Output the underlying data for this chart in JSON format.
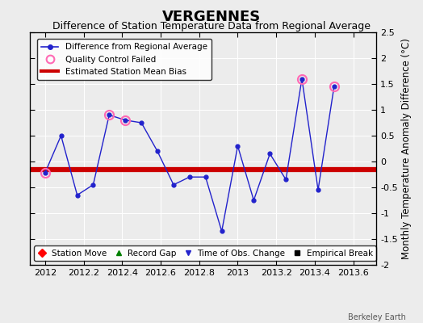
{
  "title": "VERGENNES",
  "subtitle": "Difference of Station Temperature Data from Regional Average",
  "ylabel": "Monthly Temperature Anomaly Difference (°C)",
  "background_color": "#ececec",
  "plot_bg_color": "#ececec",
  "xlim": [
    2011.92,
    2013.72
  ],
  "ylim": [
    -2.0,
    2.5
  ],
  "yticks": [
    -2,
    -1.5,
    -1,
    -0.5,
    0,
    0.5,
    1,
    1.5,
    2,
    2.5
  ],
  "xticks": [
    2012,
    2012.2,
    2012.4,
    2012.6,
    2012.8,
    2013,
    2013.2,
    2013.4,
    2013.6
  ],
  "xtick_labels": [
    "2012",
    "2012.2",
    "2012.4",
    "2012.6",
    "2012.8",
    "2013",
    "2013.2",
    "2013.4",
    "2013.6"
  ],
  "bias_line_y": -0.15,
  "line_color": "#2222cc",
  "bias_color": "#cc0000",
  "x_data": [
    2012.0,
    2012.083,
    2012.167,
    2012.25,
    2012.333,
    2012.417,
    2012.5,
    2012.583,
    2012.667,
    2012.75,
    2012.833,
    2012.917,
    2013.0,
    2013.083,
    2013.167,
    2013.25,
    2013.333,
    2013.417,
    2013.5
  ],
  "y_data": [
    -0.22,
    0.5,
    -0.65,
    -0.45,
    0.9,
    0.8,
    0.75,
    0.2,
    -0.45,
    -0.3,
    -0.3,
    -1.35,
    0.3,
    -0.75,
    0.15,
    -0.35,
    1.6,
    -0.55,
    1.45
  ],
  "qc_failed_indices": [
    0,
    4,
    5,
    16,
    18
  ],
  "qc_color": "#ff69b4",
  "title_fontsize": 13,
  "subtitle_fontsize": 9,
  "tick_fontsize": 8,
  "ylabel_fontsize": 8.5,
  "legend_fontsize": 7.5
}
